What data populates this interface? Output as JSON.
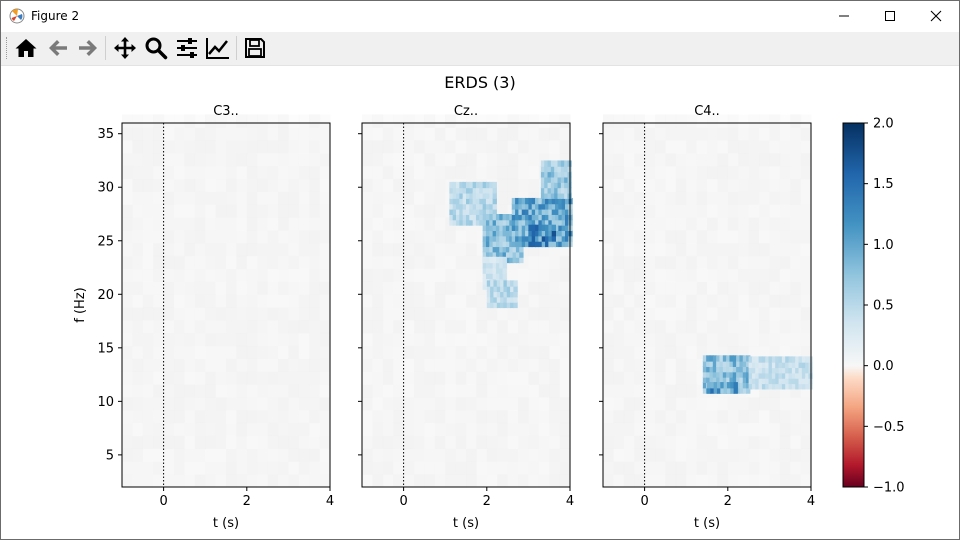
{
  "window": {
    "title": "Figure 2",
    "controls": [
      "minimize",
      "maximize",
      "close"
    ]
  },
  "toolbar": {
    "buttons": [
      {
        "name": "home",
        "icon": "home-icon"
      },
      {
        "name": "back",
        "icon": "arrow-left-icon"
      },
      {
        "name": "forward",
        "icon": "arrow-right-icon"
      },
      {
        "name": "pan",
        "icon": "move-icon"
      },
      {
        "name": "zoom",
        "icon": "magnifier-icon"
      },
      {
        "name": "configure-subplots",
        "icon": "sliders-icon"
      },
      {
        "name": "edit-axis",
        "icon": "line-chart-icon"
      },
      {
        "name": "save",
        "icon": "floppy-disk-icon"
      }
    ]
  },
  "figure": {
    "suptitle": "ERDS (3)"
  },
  "chart_data": {
    "type": "heatmap",
    "colormap": "RdBu",
    "subplots": [
      {
        "title": "C3..",
        "xlabel": "t (s)",
        "ylabel": "f (Hz)",
        "xlim": [
          -1,
          4
        ],
        "ylim": [
          2,
          36
        ],
        "xticks": [
          0,
          2,
          4
        ],
        "yticks": [
          5,
          10,
          15,
          20,
          25,
          30,
          35
        ],
        "onset_line_t": 0,
        "significant_regions": []
      },
      {
        "title": "Cz..",
        "xlabel": "t (s)",
        "ylabel": "",
        "xlim": [
          -1,
          4
        ],
        "ylim": [
          2,
          36
        ],
        "xticks": [
          0,
          2,
          4
        ],
        "yticks": [
          5,
          10,
          15,
          20,
          25,
          30,
          35
        ],
        "onset_line_t": 0,
        "significant_regions": [
          {
            "t0": 1.1,
            "t1": 2.2,
            "f0": 26.5,
            "f1": 30.5,
            "value": 0.6
          },
          {
            "t0": 1.9,
            "t1": 2.8,
            "f0": 23.0,
            "f1": 27.5,
            "value": 0.9
          },
          {
            "t0": 1.9,
            "t1": 2.4,
            "f0": 20.5,
            "f1": 23.5,
            "value": 0.4
          },
          {
            "t0": 2.0,
            "t1": 2.7,
            "f0": 18.8,
            "f1": 21.0,
            "value": 0.6
          },
          {
            "t0": 2.6,
            "t1": 4.0,
            "f0": 24.5,
            "f1": 29.0,
            "value": 1.1
          },
          {
            "t0": 3.3,
            "t1": 4.0,
            "f0": 29.0,
            "f1": 32.5,
            "value": 0.8
          },
          {
            "t0": 3.0,
            "t1": 3.6,
            "f0": 24.5,
            "f1": 26.5,
            "value": 1.4
          }
        ]
      },
      {
        "title": "C4..",
        "xlabel": "t (s)",
        "ylabel": "",
        "xlim": [
          -1,
          4
        ],
        "ylim": [
          2,
          36
        ],
        "xticks": [
          0,
          2,
          4
        ],
        "yticks": [
          5,
          10,
          15,
          20,
          25,
          30,
          35
        ],
        "onset_line_t": 0,
        "significant_regions": [
          {
            "t0": 1.4,
            "t1": 2.5,
            "f0": 10.8,
            "f1": 14.0,
            "value": 0.9
          },
          {
            "t0": 2.5,
            "t1": 4.0,
            "f0": 11.2,
            "f1": 14.0,
            "value": 0.5
          },
          {
            "t0": 1.5,
            "t1": 2.2,
            "f0": 10.8,
            "f1": 11.8,
            "value": 1.2
          }
        ]
      }
    ],
    "colorbar": {
      "min": -1.0,
      "max": 2.0,
      "ticks": [
        2.0,
        1.5,
        1.0,
        0.5,
        0.0,
        -0.5,
        -1.0
      ],
      "tick_labels": [
        "2.0",
        "1.5",
        "1.0",
        "0.5",
        "0.0",
        "−0.5",
        "−1.0"
      ]
    }
  }
}
